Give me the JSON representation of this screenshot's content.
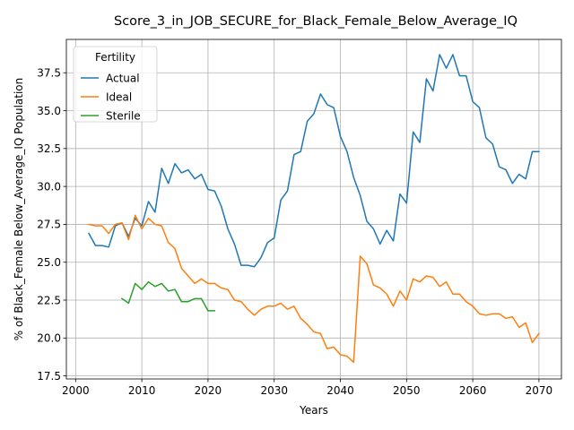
{
  "chart_data": {
    "type": "line",
    "title": "Score_3_in_JOB_SECURE_for_Black_Female_Below_Average_IQ",
    "xlabel": "Years",
    "ylabel": "% of Black_Female Below_Average_IQ Population",
    "xlim": [
      1998.6,
      2073.4
    ],
    "ylim": [
      17.3,
      39.7
    ],
    "xticks": [
      2000,
      2010,
      2020,
      2030,
      2040,
      2050,
      2060,
      2070
    ],
    "yticks": [
      17.5,
      20.0,
      22.5,
      25.0,
      27.5,
      30.0,
      32.5,
      35.0,
      37.5
    ],
    "ytick_labels": [
      "17.5",
      "20.0",
      "22.5",
      "25.0",
      "27.5",
      "30.0",
      "32.5",
      "35.0",
      "37.5"
    ],
    "grid": true,
    "legend": {
      "title": "Fertility",
      "position": "top-left"
    },
    "series": [
      {
        "name": "Actual",
        "color": "#1f77b4",
        "x": [
          2002,
          2003,
          2004,
          2005,
          2006,
          2007,
          2008,
          2009,
          2010,
          2011,
          2012,
          2013,
          2014,
          2015,
          2016,
          2017,
          2018,
          2019,
          2020,
          2021,
          2022,
          2023,
          2024,
          2025,
          2026,
          2027,
          2028,
          2029,
          2030,
          2031,
          2032,
          2033,
          2034,
          2035,
          2036,
          2037,
          2038,
          2039,
          2040,
          2041,
          2042,
          2043,
          2044,
          2045,
          2046,
          2047,
          2048,
          2049,
          2050,
          2051,
          2052,
          2053,
          2054,
          2055,
          2056,
          2057,
          2058,
          2059,
          2060,
          2061,
          2062,
          2063,
          2064,
          2065,
          2066,
          2067,
          2068,
          2069,
          2070
        ],
        "y": [
          26.9,
          26.1,
          26.1,
          26.0,
          27.4,
          27.6,
          26.7,
          27.9,
          27.4,
          29.0,
          28.3,
          31.2,
          30.2,
          31.5,
          30.9,
          31.1,
          30.5,
          30.8,
          29.8,
          29.7,
          28.7,
          27.2,
          26.2,
          24.8,
          24.8,
          24.7,
          25.3,
          26.3,
          26.6,
          29.1,
          29.7,
          32.1,
          32.3,
          34.3,
          34.8,
          36.1,
          35.4,
          35.2,
          33.3,
          32.3,
          30.6,
          29.4,
          27.7,
          27.2,
          26.2,
          27.1,
          26.4,
          29.5,
          28.9,
          33.6,
          32.9,
          37.1,
          36.3,
          38.7,
          37.8,
          38.7,
          37.3,
          37.3,
          35.6,
          35.2,
          33.2,
          32.8,
          31.3,
          31.1,
          30.2,
          30.8,
          30.5,
          32.3,
          32.3
        ]
      },
      {
        "name": "Ideal",
        "color": "#ff7f0e",
        "x": [
          2002,
          2003,
          2004,
          2005,
          2006,
          2007,
          2008,
          2009,
          2010,
          2011,
          2012,
          2013,
          2014,
          2015,
          2016,
          2017,
          2018,
          2019,
          2020,
          2021,
          2022,
          2023,
          2024,
          2025,
          2026,
          2027,
          2028,
          2029,
          2030,
          2031,
          2032,
          2033,
          2034,
          2035,
          2036,
          2037,
          2038,
          2039,
          2040,
          2041,
          2042,
          2043,
          2044,
          2045,
          2046,
          2047,
          2048,
          2049,
          2050,
          2051,
          2052,
          2053,
          2054,
          2055,
          2056,
          2057,
          2058,
          2059,
          2060,
          2061,
          2062,
          2063,
          2064,
          2065,
          2066,
          2067,
          2068,
          2069,
          2070
        ],
        "y": [
          27.5,
          27.4,
          27.4,
          26.9,
          27.5,
          27.6,
          26.5,
          28.1,
          27.2,
          27.9,
          27.5,
          27.4,
          26.3,
          25.9,
          24.6,
          24.1,
          23.6,
          23.9,
          23.6,
          23.6,
          23.3,
          23.2,
          22.5,
          22.4,
          21.9,
          21.5,
          21.9,
          22.1,
          22.1,
          22.3,
          21.9,
          22.1,
          21.3,
          20.9,
          20.4,
          20.3,
          19.3,
          19.4,
          18.9,
          18.8,
          18.4,
          25.4,
          24.9,
          23.5,
          23.3,
          22.9,
          22.1,
          23.1,
          22.5,
          23.9,
          23.7,
          24.1,
          24.0,
          23.4,
          23.7,
          22.9,
          22.9,
          22.4,
          22.1,
          21.6,
          21.5,
          21.6,
          21.6,
          21.3,
          21.4,
          20.7,
          21.0,
          19.7,
          20.3
        ]
      },
      {
        "name": "Sterile",
        "color": "#2ca02c",
        "x": [
          2007,
          2008,
          2009,
          2010,
          2011,
          2012,
          2013,
          2014,
          2015,
          2016,
          2017,
          2018,
          2019,
          2020,
          2021
        ],
        "y": [
          22.6,
          22.3,
          23.6,
          23.2,
          23.7,
          23.4,
          23.6,
          23.1,
          23.2,
          22.4,
          22.4,
          22.6,
          22.6,
          21.8,
          21.8
        ]
      }
    ]
  }
}
